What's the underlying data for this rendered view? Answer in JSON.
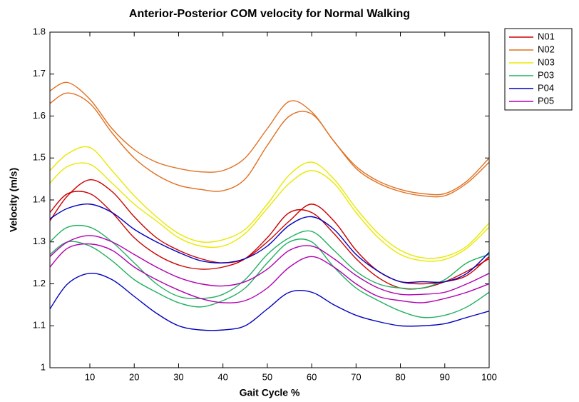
{
  "chart_data": {
    "type": "line",
    "title": "Anterior-Posterior COM velocity for Normal Walking",
    "x_label": "Gait Cycle %",
    "y_label": "Velocity (m/s)",
    "x": [
      1,
      5,
      10,
      15,
      20,
      25,
      30,
      35,
      40,
      45,
      50,
      55,
      60,
      65,
      70,
      75,
      80,
      85,
      90,
      95,
      100
    ],
    "xlim": [
      1,
      100
    ],
    "xticks": [
      10,
      20,
      30,
      40,
      50,
      60,
      70,
      80,
      90,
      100
    ],
    "ylim": [
      1,
      1.8
    ],
    "yticks": [
      1,
      1.1,
      1.2,
      1.3,
      1.4,
      1.5,
      1.6,
      1.7,
      1.8
    ],
    "legend": "outside-right",
    "series": [
      {
        "name": "N01",
        "color": "#cc0000",
        "values": [
          1.35,
          1.41,
          1.448,
          1.42,
          1.36,
          1.31,
          1.28,
          1.26,
          1.25,
          1.26,
          1.3,
          1.35,
          1.39,
          1.35,
          1.28,
          1.23,
          1.205,
          1.2,
          1.205,
          1.22,
          1.265
        ]
      },
      {
        "color": "#cc0000",
        "values": [
          1.37,
          1.415,
          1.415,
          1.37,
          1.31,
          1.27,
          1.245,
          1.235,
          1.24,
          1.26,
          1.31,
          1.37,
          1.37,
          1.32,
          1.26,
          1.215,
          1.19,
          1.19,
          1.205,
          1.23,
          1.26
        ]
      },
      {
        "name": "N02",
        "color": "#e07020",
        "values": [
          1.66,
          1.68,
          1.64,
          1.57,
          1.52,
          1.49,
          1.475,
          1.467,
          1.47,
          1.5,
          1.57,
          1.635,
          1.61,
          1.54,
          1.48,
          1.445,
          1.425,
          1.415,
          1.415,
          1.445,
          1.5
        ]
      },
      {
        "color": "#e07020",
        "values": [
          1.63,
          1.655,
          1.63,
          1.56,
          1.5,
          1.46,
          1.435,
          1.425,
          1.422,
          1.45,
          1.53,
          1.6,
          1.605,
          1.54,
          1.475,
          1.44,
          1.42,
          1.41,
          1.41,
          1.44,
          1.49
        ]
      },
      {
        "name": "N03",
        "color": "#e8e800",
        "values": [
          1.47,
          1.51,
          1.525,
          1.47,
          1.41,
          1.36,
          1.32,
          1.3,
          1.305,
          1.33,
          1.39,
          1.46,
          1.49,
          1.45,
          1.38,
          1.32,
          1.28,
          1.262,
          1.265,
          1.29,
          1.345
        ]
      },
      {
        "color": "#e8e800",
        "values": [
          1.44,
          1.48,
          1.485,
          1.44,
          1.39,
          1.35,
          1.31,
          1.29,
          1.29,
          1.32,
          1.38,
          1.44,
          1.47,
          1.44,
          1.37,
          1.31,
          1.27,
          1.255,
          1.258,
          1.285,
          1.335
        ]
      },
      {
        "name": "P03",
        "color": "#20b060",
        "values": [
          1.3,
          1.335,
          1.335,
          1.3,
          1.25,
          1.2,
          1.17,
          1.165,
          1.175,
          1.21,
          1.27,
          1.31,
          1.325,
          1.28,
          1.23,
          1.2,
          1.19,
          1.19,
          1.21,
          1.25,
          1.27
        ]
      },
      {
        "color": "#20b060",
        "values": [
          1.27,
          1.3,
          1.29,
          1.255,
          1.21,
          1.18,
          1.155,
          1.145,
          1.16,
          1.19,
          1.25,
          1.3,
          1.3,
          1.24,
          1.19,
          1.16,
          1.135,
          1.12,
          1.125,
          1.145,
          1.18
        ]
      },
      {
        "name": "P04",
        "color": "#0000c0",
        "values": [
          1.355,
          1.38,
          1.39,
          1.37,
          1.33,
          1.3,
          1.275,
          1.255,
          1.25,
          1.26,
          1.29,
          1.34,
          1.36,
          1.33,
          1.27,
          1.23,
          1.205,
          1.205,
          1.205,
          1.225,
          1.275
        ]
      },
      {
        "color": "#0000c0",
        "values": [
          1.14,
          1.2,
          1.225,
          1.21,
          1.17,
          1.13,
          1.1,
          1.09,
          1.09,
          1.1,
          1.14,
          1.18,
          1.18,
          1.15,
          1.125,
          1.11,
          1.1,
          1.1,
          1.105,
          1.12,
          1.135
        ]
      },
      {
        "name": "P05",
        "color": "#b000b0",
        "values": [
          1.265,
          1.3,
          1.315,
          1.3,
          1.27,
          1.24,
          1.215,
          1.2,
          1.195,
          1.205,
          1.235,
          1.28,
          1.29,
          1.26,
          1.22,
          1.19,
          1.175,
          1.175,
          1.18,
          1.2,
          1.225
        ]
      },
      {
        "color": "#b000b0",
        "values": [
          1.24,
          1.285,
          1.295,
          1.28,
          1.24,
          1.21,
          1.185,
          1.165,
          1.155,
          1.16,
          1.19,
          1.24,
          1.265,
          1.24,
          1.2,
          1.17,
          1.16,
          1.155,
          1.165,
          1.18,
          1.2
        ]
      }
    ]
  }
}
